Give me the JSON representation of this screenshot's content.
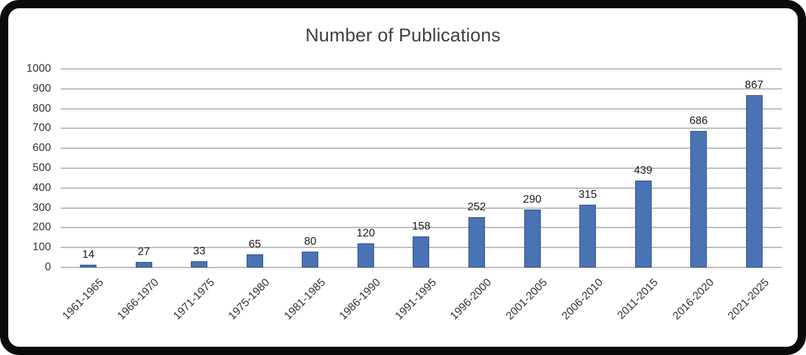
{
  "chart_data": {
    "type": "bar",
    "title": "Number of Publications",
    "categories": [
      "1961-1965",
      "1966-1970",
      "1971-1975",
      "1975-1980",
      "1981-1985",
      "1986-1990",
      "1991-1995",
      "1996-2000",
      "2001-2005",
      "2006-2010",
      "2011-2015",
      "2016-2020",
      "2021-2025"
    ],
    "values": [
      14,
      27,
      33,
      65,
      80,
      120,
      158,
      252,
      290,
      315,
      439,
      686,
      867
    ],
    "xlabel": "",
    "ylabel": "",
    "ylim": [
      0,
      1000
    ],
    "yticks": [
      0,
      100,
      200,
      300,
      400,
      500,
      600,
      700,
      800,
      900,
      1000
    ],
    "grid": true,
    "legend_position": "none",
    "data_labels": true,
    "colors": {
      "bar_fill": "#4a73b4",
      "bar_border": "#30548c",
      "gridline": "#bdbdbd",
      "title_text": "#3f3f3f",
      "tick_text": "#333333",
      "data_label_text": "#1a1a1a",
      "frame_border": "#0a0a0a",
      "background": "#ffffff"
    }
  }
}
